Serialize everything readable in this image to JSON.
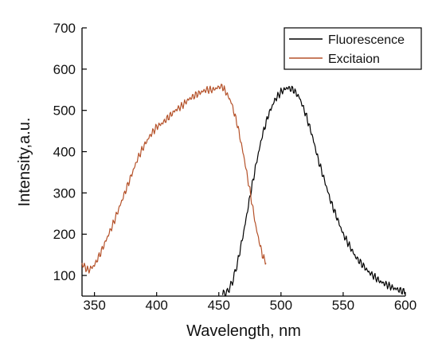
{
  "chart_data": {
    "type": "line",
    "xlabel": "Wavelength, nm",
    "ylabel": "Intensity,a.u.",
    "xlim": [
      340,
      600
    ],
    "ylim": [
      50,
      700
    ],
    "x_ticks": [
      350,
      400,
      450,
      500,
      550,
      600
    ],
    "y_ticks": [
      100,
      200,
      300,
      400,
      500,
      600,
      700
    ],
    "x_tick_labels": [
      "350",
      "400",
      "450",
      "500",
      "550",
      "600"
    ],
    "y_tick_labels": [
      "100",
      "200",
      "300",
      "400",
      "500",
      "600",
      "700"
    ],
    "grid": false,
    "legend_position": "top-right",
    "series": [
      {
        "name": "Fluorescence",
        "color": "#000000",
        "x": [
          453,
          457,
          461,
          465,
          470,
          475,
          480,
          485,
          490,
          495,
          500,
          505,
          510,
          515,
          520,
          525,
          530,
          540,
          550,
          560,
          570,
          580,
          590,
          600
        ],
        "y": [
          55,
          60,
          85,
          130,
          205,
          290,
          370,
          440,
          490,
          525,
          545,
          555,
          550,
          530,
          490,
          440,
          380,
          280,
          200,
          145,
          110,
          85,
          70,
          60
        ]
      },
      {
        "name": "Excitaion",
        "color": "#b5522a",
        "x": [
          340,
          345,
          350,
          355,
          360,
          365,
          370,
          375,
          380,
          385,
          390,
          395,
          400,
          405,
          410,
          415,
          420,
          425,
          430,
          435,
          440,
          445,
          450,
          452,
          455,
          460,
          465,
          470,
          475,
          480,
          485,
          488
        ],
        "y": [
          128,
          112,
          125,
          155,
          190,
          225,
          265,
          305,
          345,
          385,
          415,
          440,
          460,
          470,
          485,
          500,
          510,
          525,
          535,
          543,
          550,
          550,
          556,
          560,
          548,
          520,
          465,
          390,
          305,
          215,
          150,
          130
        ]
      }
    ]
  }
}
